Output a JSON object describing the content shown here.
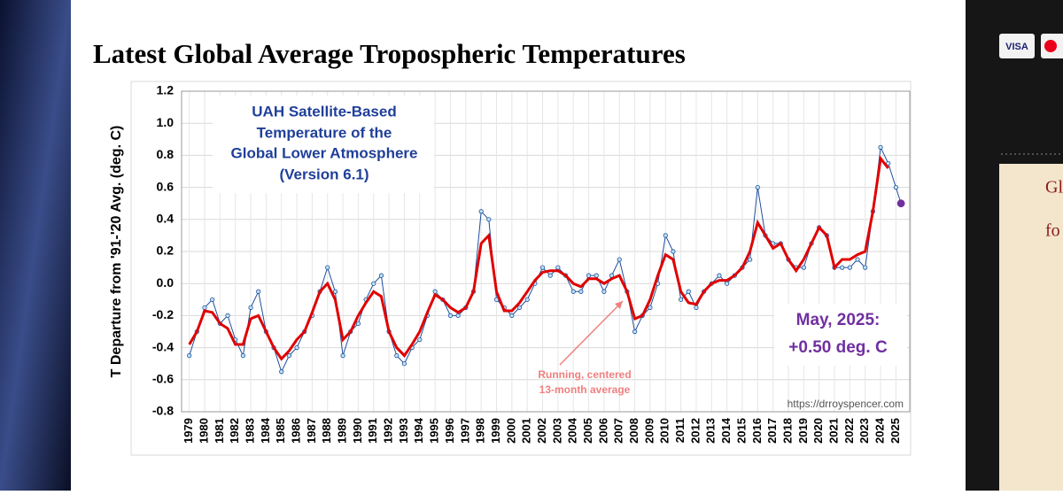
{
  "page": {
    "title": "Latest Global Average Tropospheric Temperatures",
    "card_text": "VISA",
    "side_texts": [
      "Gl",
      "fo"
    ]
  },
  "chart_data": {
    "type": "line",
    "annotations": {
      "box": [
        "UAH Satellite-Based",
        "Temperature of the",
        "Global Lower Atmosphere",
        "(Version 6.1)"
      ],
      "latest": [
        "May, 2025:",
        "+0.50 deg. C"
      ],
      "running": [
        "Running, centered",
        "13-month average"
      ],
      "source": "https://drroyspencer.com"
    },
    "y_label": "T Departure from '91-'20 Avg. (deg. C)",
    "x": [
      1979.0,
      1979.5,
      1980.0,
      1980.5,
      1981.0,
      1981.5,
      1982.0,
      1982.5,
      1983.0,
      1983.5,
      1984.0,
      1984.5,
      1985.0,
      1985.5,
      1986.0,
      1986.5,
      1987.0,
      1987.5,
      1988.0,
      1988.5,
      1989.0,
      1989.5,
      1990.0,
      1990.5,
      1991.0,
      1991.5,
      1992.0,
      1992.5,
      1993.0,
      1993.5,
      1994.0,
      1994.5,
      1995.0,
      1995.5,
      1996.0,
      1996.5,
      1997.0,
      1997.5,
      1998.0,
      1998.5,
      1999.0,
      1999.5,
      2000.0,
      2000.5,
      2001.0,
      2001.5,
      2002.0,
      2002.5,
      2003.0,
      2003.5,
      2004.0,
      2004.5,
      2005.0,
      2005.5,
      2006.0,
      2006.5,
      2007.0,
      2007.5,
      2008.0,
      2008.5,
      2009.0,
      2009.5,
      2010.0,
      2010.5,
      2011.0,
      2011.5,
      2012.0,
      2012.5,
      2013.0,
      2013.5,
      2014.0,
      2014.5,
      2015.0,
      2015.5,
      2016.0,
      2016.5,
      2017.0,
      2017.5,
      2018.0,
      2018.5,
      2019.0,
      2019.5,
      2020.0,
      2020.5,
      2021.0,
      2021.5,
      2022.0,
      2022.5,
      2023.0,
      2023.5,
      2024.0,
      2024.5,
      2025.0,
      2025.33
    ],
    "series": [
      {
        "color": "#1f4e9c",
        "markers": true,
        "values": [
          -0.45,
          -0.3,
          -0.15,
          -0.1,
          -0.25,
          -0.2,
          -0.35,
          -0.45,
          -0.15,
          -0.05,
          -0.3,
          -0.4,
          -0.55,
          -0.45,
          -0.4,
          -0.3,
          -0.2,
          -0.05,
          0.1,
          -0.05,
          -0.45,
          -0.3,
          -0.25,
          -0.1,
          0.0,
          0.05,
          -0.3,
          -0.45,
          -0.5,
          -0.4,
          -0.35,
          -0.2,
          -0.05,
          -0.1,
          -0.2,
          -0.2,
          -0.15,
          -0.05,
          0.45,
          0.4,
          -0.1,
          -0.15,
          -0.2,
          -0.15,
          -0.1,
          0.0,
          0.1,
          0.05,
          0.1,
          0.05,
          -0.05,
          -0.05,
          0.05,
          0.05,
          -0.05,
          0.05,
          0.15,
          -0.05,
          -0.3,
          -0.2,
          -0.15,
          0.0,
          0.3,
          0.2,
          -0.1,
          -0.05,
          -0.15,
          -0.05,
          0.0,
          0.05,
          0.0,
          0.05,
          0.1,
          0.15,
          0.6,
          0.3,
          0.25,
          0.25,
          0.15,
          0.1,
          0.1,
          0.25,
          0.35,
          0.3,
          0.1,
          0.1,
          0.1,
          0.15,
          0.1,
          0.45,
          0.85,
          0.75,
          0.6,
          0.5
        ]
      },
      {
        "name": "Running, centered 13-month average",
        "color": "#e00000",
        "markers": false,
        "values": [
          -0.38,
          -0.3,
          -0.17,
          -0.18,
          -0.25,
          -0.28,
          -0.38,
          -0.38,
          -0.22,
          -0.2,
          -0.3,
          -0.4,
          -0.47,
          -0.42,
          -0.35,
          -0.3,
          -0.18,
          -0.05,
          0.0,
          -0.1,
          -0.35,
          -0.3,
          -0.2,
          -0.12,
          -0.05,
          -0.08,
          -0.3,
          -0.4,
          -0.45,
          -0.38,
          -0.3,
          -0.18,
          -0.07,
          -0.1,
          -0.15,
          -0.18,
          -0.15,
          -0.05,
          0.25,
          0.3,
          -0.05,
          -0.17,
          -0.17,
          -0.12,
          -0.05,
          0.02,
          0.07,
          0.08,
          0.08,
          0.05,
          0.0,
          -0.02,
          0.03,
          0.03,
          0.0,
          0.03,
          0.05,
          -0.05,
          -0.22,
          -0.2,
          -0.1,
          0.05,
          0.18,
          0.15,
          -0.05,
          -0.12,
          -0.13,
          -0.05,
          0.0,
          0.02,
          0.02,
          0.05,
          0.1,
          0.2,
          0.38,
          0.3,
          0.22,
          0.25,
          0.15,
          0.08,
          0.15,
          0.25,
          0.35,
          0.3,
          0.1,
          0.15,
          0.15,
          0.18,
          0.2,
          0.45,
          0.78,
          0.72,
          null,
          null
        ]
      }
    ],
    "last_point_color": "#7030a0",
    "xlim": [
      1978.5,
      2025.9
    ],
    "xticks": [
      1979,
      1980,
      1981,
      1982,
      1983,
      1984,
      1985,
      1986,
      1987,
      1988,
      1989,
      1990,
      1991,
      1992,
      1993,
      1994,
      1995,
      1996,
      1997,
      1998,
      1999,
      2000,
      2001,
      2002,
      2003,
      2004,
      2005,
      2006,
      2007,
      2008,
      2009,
      2010,
      2011,
      2012,
      2013,
      2014,
      2015,
      2016,
      2017,
      2018,
      2019,
      2020,
      2021,
      2022,
      2023,
      2024,
      2025
    ],
    "ylim": [
      -0.8,
      1.2
    ],
    "yticks": [
      -0.8,
      -0.6,
      -0.4,
      -0.2,
      {
        "value": 0,
        "label": "0.0"
      },
      0.2,
      0.4,
      0.6,
      0.8,
      {
        "value": 1,
        "label": "1.0"
      },
      1.2
    ],
    "grid": true
  }
}
